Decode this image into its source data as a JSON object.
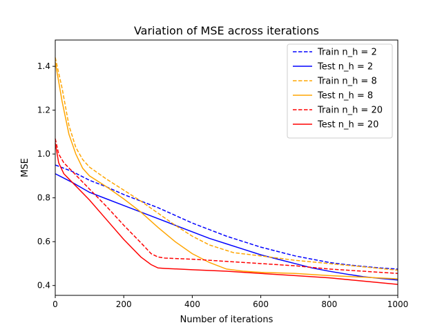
{
  "chart_data": {
    "type": "line",
    "title": "Variation of MSE across iterations",
    "xlabel": "Number of iterations",
    "ylabel": "MSE",
    "xlim": [
      0,
      1000
    ],
    "ylim": [
      0.355,
      1.52
    ],
    "xticks": [
      0,
      200,
      400,
      600,
      800,
      1000
    ],
    "yticks": [
      0.4,
      0.6,
      0.8,
      1.0,
      1.2,
      1.4
    ],
    "ytick_labels": [
      "0.4",
      "0.6",
      "0.8",
      "1.0",
      "1.2",
      "1.4"
    ],
    "grid": false,
    "legend_position": "top-right",
    "series": [
      {
        "name": "Train n_h = 2",
        "color": "#0000ff",
        "dash": true,
        "points": [
          [
            0,
            0.95
          ],
          [
            50,
            0.92
          ],
          [
            100,
            0.88
          ],
          [
            150,
            0.85
          ],
          [
            200,
            0.815
          ],
          [
            250,
            0.785
          ],
          [
            300,
            0.755
          ],
          [
            350,
            0.72
          ],
          [
            400,
            0.685
          ],
          [
            450,
            0.655
          ],
          [
            500,
            0.625
          ],
          [
            550,
            0.6
          ],
          [
            600,
            0.575
          ],
          [
            650,
            0.555
          ],
          [
            700,
            0.535
          ],
          [
            750,
            0.52
          ],
          [
            800,
            0.505
          ],
          [
            850,
            0.495
          ],
          [
            900,
            0.487
          ],
          [
            950,
            0.48
          ],
          [
            1000,
            0.475
          ]
        ]
      },
      {
        "name": "Test n_h = 2",
        "color": "#0000ff",
        "dash": false,
        "points": [
          [
            0,
            0.91
          ],
          [
            50,
            0.87
          ],
          [
            100,
            0.825
          ],
          [
            150,
            0.795
          ],
          [
            200,
            0.765
          ],
          [
            250,
            0.735
          ],
          [
            300,
            0.705
          ],
          [
            350,
            0.675
          ],
          [
            400,
            0.645
          ],
          [
            450,
            0.615
          ],
          [
            500,
            0.59
          ],
          [
            550,
            0.565
          ],
          [
            600,
            0.54
          ],
          [
            650,
            0.52
          ],
          [
            700,
            0.5
          ],
          [
            750,
            0.48
          ],
          [
            800,
            0.465
          ],
          [
            850,
            0.452
          ],
          [
            900,
            0.44
          ],
          [
            950,
            0.432
          ],
          [
            1000,
            0.425
          ]
        ]
      },
      {
        "name": "Train n_h = 8",
        "color": "#ffa500",
        "dash": true,
        "points": [
          [
            0,
            1.44
          ],
          [
            20,
            1.3
          ],
          [
            40,
            1.13
          ],
          [
            60,
            1.03
          ],
          [
            80,
            0.975
          ],
          [
            100,
            0.94
          ],
          [
            150,
            0.885
          ],
          [
            200,
            0.835
          ],
          [
            250,
            0.785
          ],
          [
            300,
            0.73
          ],
          [
            350,
            0.675
          ],
          [
            400,
            0.625
          ],
          [
            450,
            0.585
          ],
          [
            500,
            0.56
          ],
          [
            520,
            0.55
          ],
          [
            600,
            0.535
          ],
          [
            700,
            0.515
          ],
          [
            800,
            0.5
          ],
          [
            900,
            0.485
          ],
          [
            1000,
            0.47
          ]
        ]
      },
      {
        "name": "Test n_h = 8",
        "color": "#ffa500",
        "dash": false,
        "points": [
          [
            0,
            1.42
          ],
          [
            20,
            1.24
          ],
          [
            40,
            1.09
          ],
          [
            60,
            1.0
          ],
          [
            80,
            0.935
          ],
          [
            100,
            0.9
          ],
          [
            150,
            0.85
          ],
          [
            200,
            0.795
          ],
          [
            250,
            0.735
          ],
          [
            300,
            0.665
          ],
          [
            350,
            0.6
          ],
          [
            400,
            0.545
          ],
          [
            450,
            0.505
          ],
          [
            500,
            0.475
          ],
          [
            550,
            0.465
          ],
          [
            600,
            0.46
          ],
          [
            700,
            0.455
          ],
          [
            800,
            0.445
          ],
          [
            900,
            0.438
          ],
          [
            1000,
            0.43
          ]
        ]
      },
      {
        "name": "Train n_h = 20",
        "color": "#ff0000",
        "dash": true,
        "points": [
          [
            0,
            1.07
          ],
          [
            10,
            1.0
          ],
          [
            25,
            0.96
          ],
          [
            50,
            0.92
          ],
          [
            100,
            0.84
          ],
          [
            150,
            0.76
          ],
          [
            200,
            0.675
          ],
          [
            250,
            0.595
          ],
          [
            280,
            0.545
          ],
          [
            300,
            0.53
          ],
          [
            320,
            0.525
          ],
          [
            400,
            0.52
          ],
          [
            500,
            0.51
          ],
          [
            600,
            0.5
          ],
          [
            700,
            0.49
          ],
          [
            800,
            0.475
          ],
          [
            900,
            0.465
          ],
          [
            1000,
            0.455
          ]
        ]
      },
      {
        "name": "Test n_h = 20",
        "color": "#ff0000",
        "dash": false,
        "points": [
          [
            0,
            1.05
          ],
          [
            10,
            0.96
          ],
          [
            25,
            0.91
          ],
          [
            50,
            0.87
          ],
          [
            100,
            0.79
          ],
          [
            150,
            0.7
          ],
          [
            200,
            0.61
          ],
          [
            250,
            0.53
          ],
          [
            280,
            0.495
          ],
          [
            300,
            0.48
          ],
          [
            320,
            0.478
          ],
          [
            400,
            0.472
          ],
          [
            500,
            0.465
          ],
          [
            600,
            0.455
          ],
          [
            700,
            0.445
          ],
          [
            800,
            0.435
          ],
          [
            900,
            0.42
          ],
          [
            1000,
            0.405
          ]
        ]
      }
    ]
  }
}
